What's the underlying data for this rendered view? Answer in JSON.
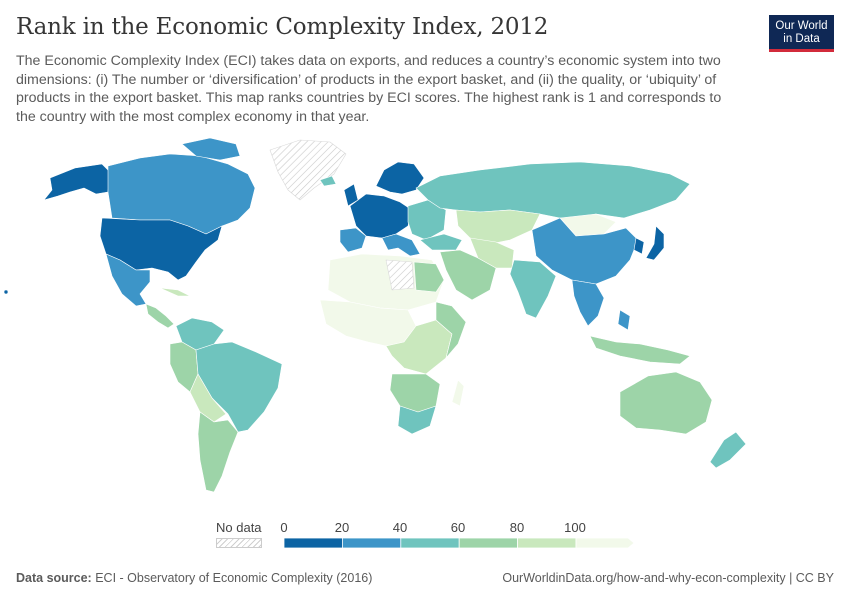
{
  "header": {
    "title": "Rank in the Economic Complexity Index, 2012",
    "subtitle": "The Economic Complexity Index (ECI) takes data on exports, and reduces a country’s economic system into two dimensions: (i) The number or ‘diversification’ of products in the export basket, and (ii) the quality, or ‘ubiquity’ of products in the export basket. This map ranks countries by ECI scores. The highest rank is 1 and corresponds to the country with the most complex economy in that year."
  },
  "logo": {
    "line1": "Our World",
    "line2": "in Data"
  },
  "legend": {
    "no_data_label": "No data",
    "ticks": [
      "0",
      "20",
      "40",
      "60",
      "80",
      "100"
    ],
    "colors": [
      "#0c64a4",
      "#3d95c8",
      "#6fc4be",
      "#9dd4a8",
      "#c9e8bd",
      "#f2f9ea"
    ],
    "no_data_pattern": "hatched-gray"
  },
  "map_data": {
    "projection": "robinson-like world",
    "regions": [
      {
        "name": "USA",
        "rank_band": "0-20"
      },
      {
        "name": "Canada",
        "rank_band": "20-40"
      },
      {
        "name": "Mexico",
        "rank_band": "20-40"
      },
      {
        "name": "Brazil",
        "rank_band": "40-60"
      },
      {
        "name": "Russia",
        "rank_band": "40-60"
      },
      {
        "name": "China",
        "rank_band": "20-40"
      },
      {
        "name": "Japan",
        "rank_band": "0-20"
      },
      {
        "name": "Western Europe",
        "rank_band": "0-20"
      },
      {
        "name": "Australia",
        "rank_band": "60-80"
      },
      {
        "name": "South Africa",
        "rank_band": "40-60"
      },
      {
        "name": "India",
        "rank_band": "40-60"
      },
      {
        "name": "Greenland",
        "rank_band": "no data"
      }
    ]
  },
  "footer": {
    "source_label": "Data source:",
    "source_text": "ECI - Observatory of Economic Complexity (2016)",
    "url_text": "OurWorldinData.org/how-and-why-econ-complexity | CC BY"
  }
}
